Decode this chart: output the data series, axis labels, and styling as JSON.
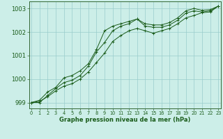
{
  "xlabel": "Graphe pression niveau de la mer (hPa)",
  "background_color": "#cceee8",
  "grid_color": "#99cccc",
  "line_color": "#1a5c1a",
  "x": [
    0,
    1,
    2,
    3,
    4,
    5,
    6,
    7,
    8,
    9,
    10,
    11,
    12,
    13,
    14,
    15,
    16,
    17,
    18,
    19,
    20,
    21,
    22,
    23
  ],
  "line1": [
    999.0,
    999.0,
    999.3,
    999.6,
    999.85,
    999.95,
    1000.15,
    1000.55,
    1001.15,
    1001.55,
    1002.05,
    1002.25,
    1002.35,
    1002.55,
    1002.25,
    1002.2,
    1002.2,
    1002.3,
    1002.5,
    1002.8,
    1002.9,
    1002.85,
    1002.9,
    1003.1
  ],
  "line2": [
    999.0,
    999.05,
    999.25,
    999.5,
    999.7,
    999.8,
    1000.0,
    1000.3,
    1000.7,
    1001.1,
    1001.6,
    1001.85,
    1002.05,
    1002.15,
    1002.05,
    1001.95,
    1002.05,
    1002.15,
    1002.35,
    1002.6,
    1002.7,
    1002.82,
    1002.85,
    1003.1
  ],
  "line3": [
    999.0,
    999.1,
    999.45,
    999.65,
    1000.05,
    1000.15,
    1000.35,
    1000.65,
    1001.25,
    1002.05,
    1002.25,
    1002.35,
    1002.45,
    1002.55,
    1002.35,
    1002.3,
    1002.3,
    1002.4,
    1002.6,
    1002.9,
    1003.0,
    1002.92,
    1002.95,
    1003.1
  ],
  "ylim": [
    998.75,
    1003.3
  ],
  "yticks": [
    999,
    1000,
    1001,
    1002,
    1003
  ],
  "xticks": [
    0,
    1,
    2,
    3,
    4,
    5,
    6,
    7,
    8,
    9,
    10,
    11,
    12,
    13,
    14,
    15,
    16,
    17,
    18,
    19,
    20,
    21,
    22,
    23
  ]
}
